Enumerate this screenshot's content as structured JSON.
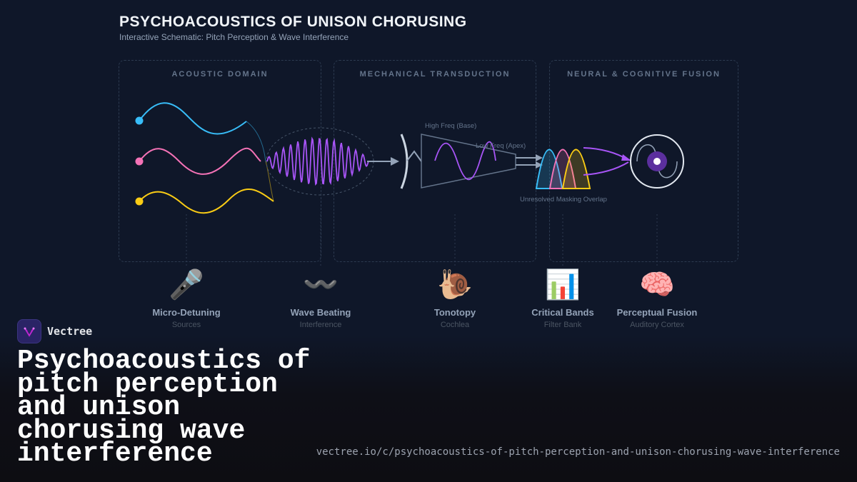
{
  "header": {
    "title": "PSYCHOACOUSTICS OF UNISON CHORUSING",
    "subtitle": "Interactive Schematic: Pitch Perception & Wave Interference"
  },
  "panels": [
    {
      "label": "ACOUSTIC DOMAIN"
    },
    {
      "label": "MECHANICAL TRANSDUCTION"
    },
    {
      "label": "NEURAL & COGNITIVE FUSION"
    }
  ],
  "annotations": {
    "high_freq": "High Freq (Base)",
    "low_freq": "Low Freq (Apex)",
    "masking": "Unresolved Masking Overlap"
  },
  "colors": {
    "wave1": "#38bdf8",
    "wave2": "#f472b6",
    "wave3": "#facc15",
    "beat": "#a855f7"
  },
  "stages": [
    {
      "icon": "microphone-icon",
      "glyph": "🎤",
      "name": "Micro-Detuning",
      "sub": "Sources"
    },
    {
      "icon": "wavy-dash-icon",
      "glyph": "〰️",
      "name": "Wave Beating",
      "sub": "Interference"
    },
    {
      "icon": "snail-icon",
      "glyph": "🐌",
      "name": "Tonotopy",
      "sub": "Cochlea"
    },
    {
      "icon": "bar-chart-icon",
      "glyph": "📊",
      "name": "Critical Bands",
      "sub": "Filter Bank"
    },
    {
      "icon": "brain-icon",
      "glyph": "🧠",
      "name": "Perceptual Fusion",
      "sub": "Auditory Cortex"
    }
  ],
  "brand": {
    "name": "Vectree"
  },
  "footer": {
    "title": "Psychoacoustics of pitch perception and unison chorusing wave interference",
    "url": "vectree.io/c/psychoacoustics-of-pitch-perception-and-unison-chorusing-wave-interference"
  }
}
